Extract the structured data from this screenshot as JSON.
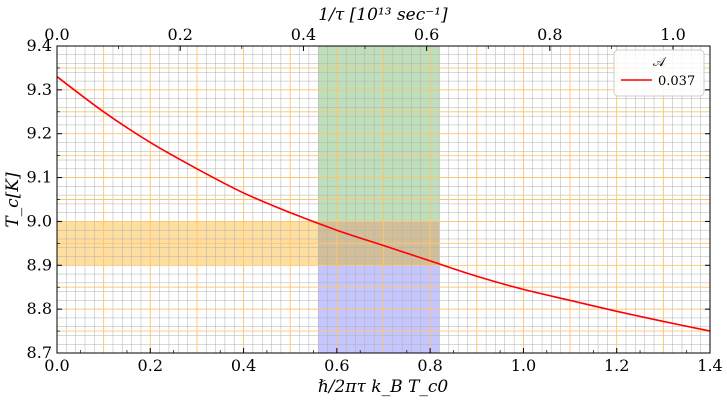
{
  "chart_data": {
    "type": "line",
    "bottom_axis": {
      "label": "ℏ/2πτ k_B T_c0",
      "range": [
        0,
        1.4
      ],
      "ticks": [
        "0.0",
        "0.2",
        "0.4",
        "0.6",
        "0.8",
        "1.0",
        "1.2",
        "1.4"
      ],
      "tick_values": [
        0,
        0.2,
        0.4,
        0.6,
        0.8,
        1.0,
        1.2,
        1.4
      ]
    },
    "top_axis": {
      "label": "1/τ [10¹³ sec⁻¹]",
      "range": [
        0,
        1.06
      ],
      "ticks": [
        "0.0",
        "0.2",
        "0.4",
        "0.6",
        "0.8",
        "1.0"
      ],
      "tick_values": [
        0,
        0.2,
        0.4,
        0.6,
        0.8,
        1.0
      ]
    },
    "y_axis": {
      "label": "T_c[K]",
      "range": [
        8.7,
        9.4
      ],
      "ticks": [
        "8.7",
        "8.8",
        "8.9",
        "9.0",
        "9.1",
        "9.2",
        "9.3",
        "9.4"
      ],
      "tick_values": [
        8.7,
        8.8,
        8.9,
        9.0,
        9.1,
        9.2,
        9.3,
        9.4
      ]
    },
    "grid": "major and minor",
    "series": [
      {
        "name": "0.037",
        "color": "#ff0000",
        "x": [
          0.0,
          0.1,
          0.2,
          0.3,
          0.4,
          0.5,
          0.6,
          0.7,
          0.8,
          0.9,
          1.0,
          1.1,
          1.2,
          1.3,
          1.4
        ],
        "y": [
          9.33,
          9.25,
          9.18,
          9.12,
          9.065,
          9.02,
          8.98,
          8.945,
          8.91,
          8.875,
          8.845,
          8.82,
          8.795,
          8.772,
          8.75
        ]
      }
    ],
    "bands": [
      {
        "axis": "x",
        "from": 0.56,
        "to": 0.82,
        "y_from": 8.9,
        "y_to": 9.4,
        "color": "#a9d3a3"
      },
      {
        "axis": "x",
        "from": 0.56,
        "to": 0.82,
        "y_from": 8.7,
        "y_to": 8.9,
        "color": "#b3b3ff"
      },
      {
        "axis": "y",
        "from": 8.9,
        "to": 9.0,
        "x_from": 0.0,
        "x_to": 0.56,
        "color": "#ffd480"
      },
      {
        "axis": "y",
        "from": 8.9,
        "to": 9.0,
        "x_from": 0.56,
        "x_to": 0.82,
        "color": "#d8b48f"
      }
    ],
    "legend": {
      "title": "𝒜",
      "position": "top-right"
    }
  }
}
